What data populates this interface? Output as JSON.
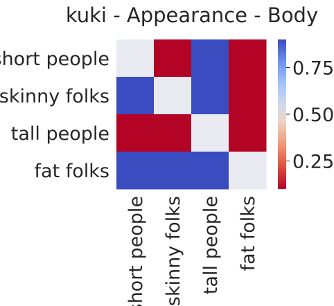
{
  "chart_data": {
    "type": "heatmap",
    "title": "kuki - Appearance - Body",
    "rows": [
      "short people",
      "skinny folks",
      "tall people",
      "fat folks"
    ],
    "columns": [
      "short people",
      "skinny folks",
      "tall people",
      "fat folks"
    ],
    "values": [
      [
        0.5,
        0.1,
        0.9,
        0.1
      ],
      [
        0.9,
        0.5,
        0.9,
        0.1
      ],
      [
        0.1,
        0.1,
        0.5,
        0.1
      ],
      [
        0.9,
        0.9,
        0.9,
        0.5
      ]
    ],
    "diagonal_masked": true,
    "colormap": "coolwarm_r",
    "vmin": 0.1,
    "vmax": 0.9,
    "colorbar_ticks": [
      0.25,
      0.5,
      0.75
    ],
    "colorbar_tick_labels": [
      "0.25",
      "0.50",
      "0.75"
    ],
    "xlabel": "",
    "ylabel": "",
    "grid": false
  },
  "colors": {
    "high": "#3b4cc0",
    "mid": "#dddddd",
    "low": "#b40426",
    "masked": "#eaeaf2"
  }
}
